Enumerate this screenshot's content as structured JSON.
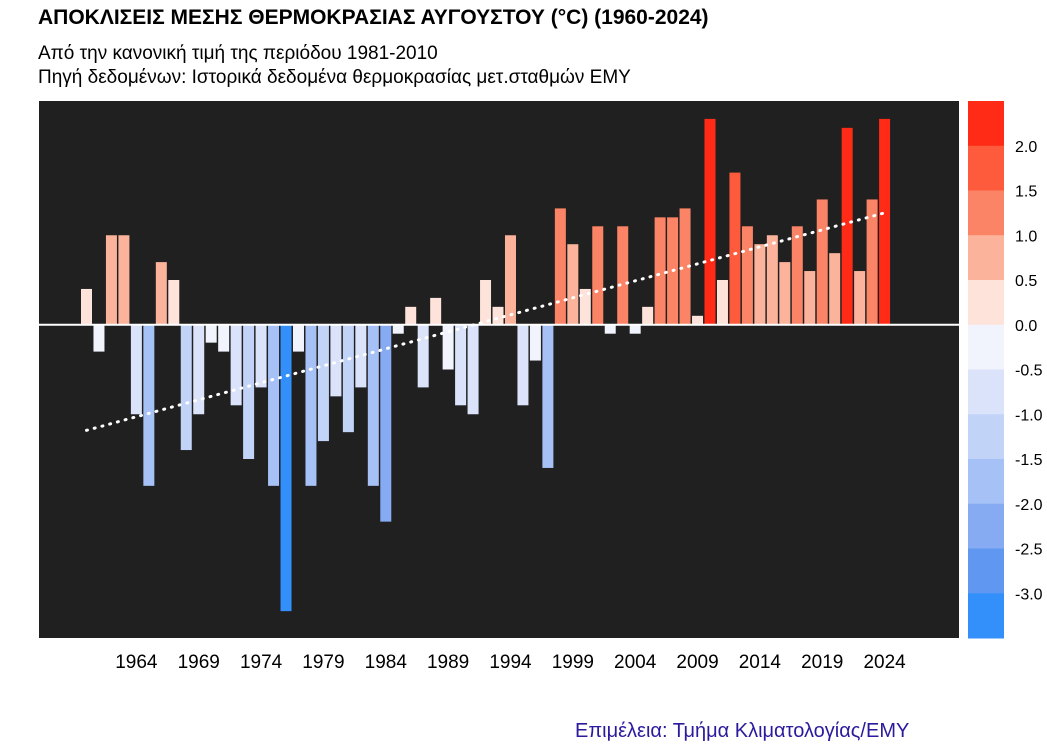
{
  "title": "ΑΠΟΚΛΙΣΕΙΣ ΜΕΣΗΣ ΘΕΡΜΟΚΡΑΣΙΑΣ ΑΥΓΟΥΣΤΟΥ (°C) (1960-2024)",
  "subtitle": "Από την κανονική τιμή της περιόδου 1981-2010",
  "source": "Πηγή δεδομένων: Ιστορικά δεδομένα θερμοκρασίας μετ.σταθμών ΕΜΥ",
  "credit": "Επιμέλεια: Τμήμα Κλιματολογίας/ΕΜΥ",
  "colors": {
    "plot_background": "#202021",
    "zero_line": "#ffffff",
    "trend_line": "#ffffff"
  },
  "chart_data": {
    "type": "bar",
    "title": "ΑΠΟΚΛΙΣΕΙΣ ΜΕΣΗΣ ΘΕΡΜΟΚΡΑΣΙΑΣ ΑΥΓΟΥΣΤΟΥ (°C) (1960-2024)",
    "xlabel": "",
    "ylabel": "",
    "x": [
      1960,
      1961,
      1962,
      1963,
      1964,
      1965,
      1966,
      1967,
      1968,
      1969,
      1970,
      1971,
      1972,
      1973,
      1974,
      1975,
      1976,
      1977,
      1978,
      1979,
      1980,
      1981,
      1982,
      1983,
      1984,
      1985,
      1986,
      1987,
      1988,
      1989,
      1990,
      1991,
      1992,
      1993,
      1994,
      1995,
      1996,
      1997,
      1998,
      1999,
      2000,
      2001,
      2002,
      2003,
      2004,
      2005,
      2006,
      2007,
      2008,
      2009,
      2010,
      2011,
      2012,
      2013,
      2014,
      2015,
      2016,
      2017,
      2018,
      2019,
      2020,
      2021,
      2022,
      2023,
      2024
    ],
    "values": [
      0.4,
      -0.3,
      1.0,
      1.0,
      -1.0,
      -1.8,
      0.7,
      0.5,
      -1.4,
      -1.0,
      -0.2,
      -0.3,
      -0.9,
      -1.5,
      -0.7,
      -1.8,
      -3.2,
      -0.3,
      -1.8,
      -1.3,
      -0.8,
      -1.2,
      -0.7,
      -1.8,
      -2.2,
      -0.1,
      0.2,
      -0.7,
      0.3,
      -0.5,
      -0.9,
      -1.0,
      0.5,
      0.2,
      1.0,
      -0.9,
      -0.4,
      -1.6,
      1.3,
      0.9,
      0.4,
      1.1,
      -0.1,
      1.1,
      -0.1,
      0.2,
      1.2,
      1.2,
      1.3,
      0.1,
      2.3,
      0.5,
      1.7,
      1.1,
      0.9,
      1.0,
      0.7,
      1.1,
      0.6,
      1.4,
      0.8,
      2.2,
      0.6,
      1.4,
      2.3
    ],
    "xticks": [
      "1964",
      "1969",
      "1974",
      "1979",
      "1984",
      "1989",
      "1994",
      "1999",
      "2004",
      "2009",
      "2014",
      "2019",
      "2024"
    ],
    "ylim": [
      -3.5,
      2.5
    ],
    "trend": {
      "style": "dotted",
      "start_value": -1.18,
      "end_value": 1.25
    },
    "colorbar": {
      "position": "right",
      "ticks": [
        "2.0",
        "1.5",
        "1.0",
        "0.5",
        "0.0",
        "-0.5",
        "-1.0",
        "-1.5",
        "-2.0",
        "-2.5",
        "-3.0"
      ],
      "bins": [
        {
          "from": 2.0,
          "to": 2.5,
          "color": "#ff2b16"
        },
        {
          "from": 1.5,
          "to": 2.0,
          "color": "#fe5a3c"
        },
        {
          "from": 1.0,
          "to": 1.5,
          "color": "#fc8466"
        },
        {
          "from": 0.5,
          "to": 1.0,
          "color": "#fcb39b"
        },
        {
          "from": 0.0,
          "to": 0.5,
          "color": "#fde3d9"
        },
        {
          "from": -0.5,
          "to": 0.0,
          "color": "#f1f4fd"
        },
        {
          "from": -1.0,
          "to": -0.5,
          "color": "#dbe3fb"
        },
        {
          "from": -1.5,
          "to": -1.0,
          "color": "#c2d3f8"
        },
        {
          "from": -2.0,
          "to": -1.5,
          "color": "#a6c1f5"
        },
        {
          "from": -2.5,
          "to": -2.0,
          "color": "#86abf3"
        },
        {
          "from": -3.0,
          "to": -2.5,
          "color": "#6097f0"
        },
        {
          "from": -3.5,
          "to": -3.0,
          "color": "#3390fb"
        }
      ]
    },
    "grid": false,
    "legend": "none"
  }
}
